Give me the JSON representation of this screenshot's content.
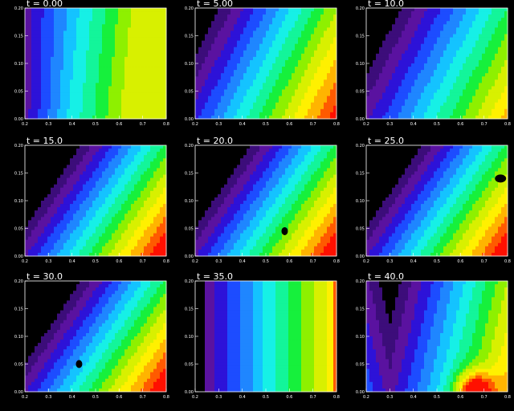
{
  "chart_data": {
    "type": "heatmap",
    "colormap": "rainbow",
    "background": "#000000",
    "axis_color": "#ffffff",
    "xlim": [
      0.2,
      0.8
    ],
    "ylim": [
      0.0,
      0.2
    ],
    "x_ticks": [
      0.2,
      0.3,
      0.4,
      0.5,
      0.6,
      0.7,
      0.8
    ],
    "y_ticks": [
      0.0,
      0.05,
      0.1,
      0.15,
      0.2
    ],
    "x_tick_labels": [
      "0.2",
      "0.3",
      "0.4",
      "0.5",
      "0.6",
      "0.7",
      "0.8"
    ],
    "y_tick_labels": [
      "0.00",
      "0.05",
      "0.10",
      "0.15",
      "0.20"
    ],
    "panels": [
      {
        "title": "t = 0.00",
        "t": 0.0
      },
      {
        "title": "t = 5.00",
        "t": 5.0
      },
      {
        "title": "t = 10.0",
        "t": 10.0
      },
      {
        "title": "t = 15.0",
        "t": 15.0
      },
      {
        "title": "t = 20.0",
        "t": 20.0
      },
      {
        "title": "t = 25.0",
        "t": 25.0
      },
      {
        "title": "t = 30.0",
        "t": 30.0
      },
      {
        "title": "t = 35.0",
        "t": 35.0
      },
      {
        "title": "t = 40.0",
        "t": 40.0
      }
    ]
  }
}
